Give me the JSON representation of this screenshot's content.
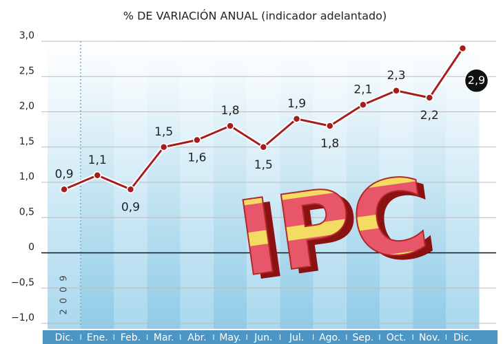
{
  "chart_data": {
    "type": "line",
    "title": "% DE VARIACIÓN ANUAL (indicador adelantado)",
    "categories": [
      "Dic.",
      "Ene.",
      "Feb.",
      "Mar.",
      "Abr.",
      "May.",
      "Jun.",
      "Jul.",
      "Ago.",
      "Sep.",
      "Oct.",
      "Nov.",
      "Dic."
    ],
    "values": [
      0.9,
      1.1,
      0.9,
      1.5,
      1.6,
      1.8,
      1.5,
      1.9,
      1.8,
      2.1,
      2.3,
      2.2,
      2.9
    ],
    "value_labels": [
      "0,9",
      "1,1",
      "0,9",
      "1,5",
      "1,6",
      "1,8",
      "1,5",
      "1,9",
      "1,8",
      "2,1",
      "2,3",
      "2,2",
      "2,9"
    ],
    "color": "#a51d1d",
    "ylim": [
      -1,
      3
    ],
    "yticks": [
      {
        "value": 3,
        "label": "3,0"
      },
      {
        "value": 2.5,
        "label": "2,5"
      },
      {
        "value": 2,
        "label": "2,0"
      },
      {
        "value": 1.5,
        "label": "1,5"
      },
      {
        "value": 1,
        "label": "1,0"
      },
      {
        "value": 0.5,
        "label": "0,5"
      },
      0,
      {
        "value": -0.5,
        "label": "−0,5"
      },
      {
        "value": -1,
        "label": "−1,0"
      }
    ],
    "grid": true,
    "year_label": "2009",
    "annotation": "IPC"
  }
}
